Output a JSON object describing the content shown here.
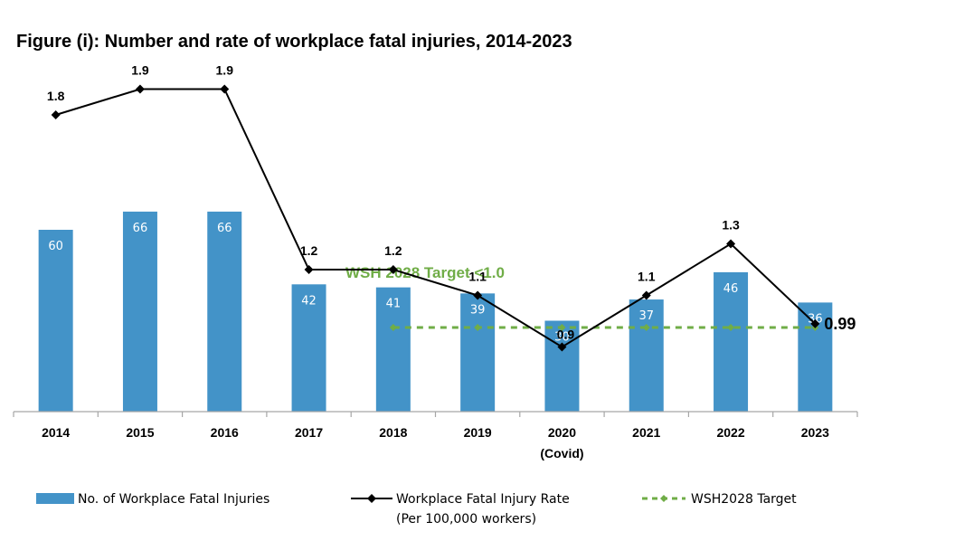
{
  "chart_data": {
    "type": "bar",
    "title": "Figure (i): Number and rate of workplace fatal injuries, 2014-2023",
    "categories": [
      "2014",
      "2015",
      "2016",
      "2017",
      "2018",
      "2019",
      "2020",
      "2021",
      "2022",
      "2023"
    ],
    "category_notes": {
      "2020": "(Covid)"
    },
    "series": [
      {
        "name": "No. of Workplace Fatal Injuries",
        "kind": "bar",
        "color": "#4393c8",
        "values": [
          60,
          66,
          66,
          42,
          41,
          39,
          30,
          37,
          46,
          36
        ]
      },
      {
        "name": "Workplace Fatal Injury Rate",
        "name_line2": "(Per 100,000 workers)",
        "kind": "line",
        "color": "#000000",
        "marker": "diamond",
        "values": [
          1.8,
          1.9,
          1.9,
          1.2,
          1.2,
          1.1,
          0.9,
          1.1,
          1.3,
          0.99
        ],
        "labels": [
          "1.8",
          "1.9",
          "1.9",
          "1.2",
          "1.2",
          "1.1",
          "0.9",
          "1.1",
          "1.3",
          "0.99"
        ]
      },
      {
        "name": "WSH2028 Target",
        "kind": "line",
        "color": "#70ad47",
        "style": "dashed",
        "value": 1.0,
        "from_category": "2018",
        "to_category": "2023"
      }
    ],
    "annotations": [
      {
        "text": "WSH 2028 Target <1.0"
      }
    ],
    "legend_position": "bottom",
    "grid": false
  }
}
